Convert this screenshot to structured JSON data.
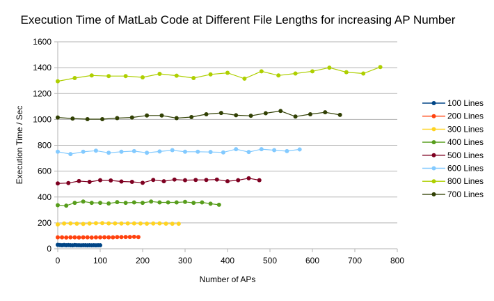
{
  "chart_data": {
    "type": "line",
    "title": "Execution Time of MatLab Code at Different File Lengths for increasing AP Number",
    "xlabel": "Number of APs",
    "ylabel": "Execution Time / Sec",
    "xlim": [
      0,
      800
    ],
    "ylim": [
      0,
      1600
    ],
    "xticks": [
      0,
      100,
      200,
      300,
      400,
      500,
      600,
      700,
      800
    ],
    "yticks": [
      0,
      200,
      400,
      600,
      800,
      1000,
      1200,
      1400,
      1600
    ],
    "grid": "horizontal",
    "legend_position": "right",
    "series": [
      {
        "name": "100 Lines",
        "color": "#004586",
        "x": [
          0,
          5,
          10,
          15,
          20,
          25,
          30,
          35,
          40,
          45,
          50,
          55,
          60,
          65,
          70,
          75,
          80,
          85,
          90,
          95,
          100
        ],
        "y": [
          30,
          28,
          27,
          29,
          27,
          28,
          27,
          26,
          28,
          27,
          27,
          26,
          27,
          27,
          26,
          27,
          26,
          27,
          26,
          27,
          27
        ]
      },
      {
        "name": "200 Lines",
        "color": "#ff420e",
        "x": [
          0,
          10,
          20,
          30,
          40,
          50,
          60,
          70,
          80,
          90,
          100,
          110,
          120,
          130,
          140,
          150,
          160,
          170,
          180,
          190
        ],
        "y": [
          88,
          88,
          87,
          88,
          88,
          87,
          88,
          88,
          87,
          88,
          88,
          89,
          88,
          88,
          90,
          90,
          91,
          91,
          92,
          90
        ]
      },
      {
        "name": "300 Lines",
        "color": "#ffd320",
        "x": [
          0,
          15,
          30,
          45,
          60,
          75,
          90,
          105,
          120,
          135,
          150,
          165,
          180,
          195,
          210,
          225,
          240,
          255,
          270,
          285
        ],
        "y": [
          188,
          195,
          196,
          194,
          192,
          195,
          197,
          198,
          196,
          196,
          195,
          196,
          196,
          195,
          194,
          195,
          196,
          194,
          193,
          193
        ]
      },
      {
        "name": "400 Lines",
        "color": "#579d1c",
        "x": [
          0,
          20,
          40,
          60,
          80,
          100,
          120,
          140,
          160,
          180,
          200,
          220,
          240,
          260,
          280,
          300,
          320,
          340,
          360,
          380
        ],
        "y": [
          337,
          333,
          355,
          365,
          355,
          355,
          350,
          360,
          355,
          358,
          355,
          365,
          358,
          358,
          358,
          362,
          355,
          358,
          348,
          340
        ]
      },
      {
        "name": "500 Lines",
        "color": "#7e0021",
        "x": [
          0,
          25,
          50,
          75,
          100,
          125,
          150,
          175,
          200,
          225,
          250,
          275,
          300,
          325,
          350,
          375,
          400,
          425,
          450,
          475
        ],
        "y": [
          505,
          508,
          523,
          517,
          530,
          528,
          520,
          517,
          510,
          532,
          522,
          535,
          530,
          532,
          532,
          535,
          522,
          530,
          545,
          530
        ]
      },
      {
        "name": "600 Lines",
        "color": "#83caff",
        "x": [
          0,
          30,
          60,
          90,
          120,
          150,
          180,
          210,
          240,
          270,
          300,
          330,
          360,
          390,
          420,
          450,
          480,
          510,
          540,
          570
        ],
        "y": [
          750,
          732,
          750,
          758,
          742,
          750,
          755,
          742,
          752,
          762,
          750,
          750,
          748,
          745,
          770,
          748,
          770,
          762,
          755,
          768
        ]
      },
      {
        "name": "800 Lines",
        "color": "#aecf00",
        "x": [
          0,
          40,
          80,
          120,
          160,
          200,
          240,
          280,
          320,
          360,
          400,
          440,
          480,
          520,
          560,
          600,
          640,
          680,
          720,
          760
        ],
        "y": [
          1295,
          1320,
          1340,
          1335,
          1335,
          1325,
          1352,
          1338,
          1320,
          1348,
          1360,
          1315,
          1372,
          1340,
          1355,
          1372,
          1400,
          1365,
          1355,
          1405
        ]
      },
      {
        "name": "700 Lines",
        "color": "#314004",
        "x": [
          0,
          35,
          70,
          105,
          140,
          175,
          210,
          245,
          280,
          315,
          350,
          385,
          420,
          455,
          490,
          525,
          560,
          595,
          630,
          665
        ],
        "y": [
          1015,
          1007,
          1002,
          1002,
          1010,
          1015,
          1030,
          1030,
          1010,
          1018,
          1040,
          1050,
          1032,
          1028,
          1048,
          1065,
          1022,
          1040,
          1055,
          1035
        ]
      }
    ]
  }
}
